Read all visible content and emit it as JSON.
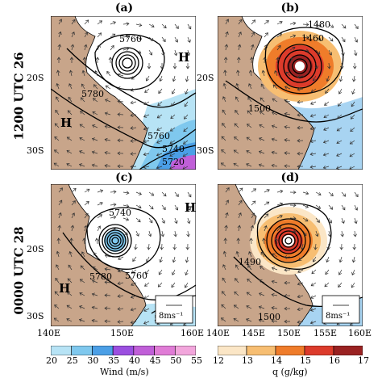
{
  "panels": [
    {
      "id": "a",
      "label": "(a)",
      "field": "wind",
      "contours": [
        "5760",
        "5780",
        "5760",
        "5740",
        "5720"
      ],
      "highs": [
        "H",
        "H"
      ]
    },
    {
      "id": "b",
      "label": "(b)",
      "field": "q",
      "contours": [
        "1480",
        "1460",
        "1500"
      ],
      "highs": []
    },
    {
      "id": "c",
      "label": "(c)",
      "field": "wind",
      "contours": [
        "5740",
        "5780",
        "5760",
        "5740"
      ],
      "highs": [
        "H",
        "H"
      ],
      "reference_vector": "8ms⁻¹"
    },
    {
      "id": "d",
      "label": "(d)",
      "field": "q",
      "contours": [
        "1490",
        "1500"
      ],
      "highs": [],
      "reference_vector": "8ms⁻¹"
    }
  ],
  "row_labels": [
    "1200 UTC 26",
    "0000 UTC 28"
  ],
  "y_ticks": [
    "20S",
    "30S"
  ],
  "x_ticks_left": [
    "140E",
    "150E",
    "160E"
  ],
  "x_ticks_right": [
    "140E",
    "145E",
    "150E",
    "155E",
    "160E"
  ],
  "wind_colorbar": {
    "title": "Wind (m/s)",
    "ticks": [
      "20",
      "25",
      "30",
      "35",
      "40",
      "45",
      "50",
      "55"
    ],
    "colors": [
      "#b7e3f5",
      "#7fc8ee",
      "#4b9fe6",
      "#9b4fe0",
      "#c05fd8",
      "#e07cd6",
      "#f2a6dc"
    ]
  },
  "q_colorbar": {
    "title": "q (g/kg)",
    "ticks": [
      "12",
      "13",
      "14",
      "15",
      "16",
      "17"
    ],
    "colors": [
      "#fbe6c6",
      "#f7be72",
      "#ef7c2a",
      "#dc3b2b",
      "#9a2222"
    ]
  },
  "colors": {
    "land": "#c8a58a",
    "ocean": "#ffffff",
    "contour": "#000000",
    "moist": "#a8d4f2"
  }
}
